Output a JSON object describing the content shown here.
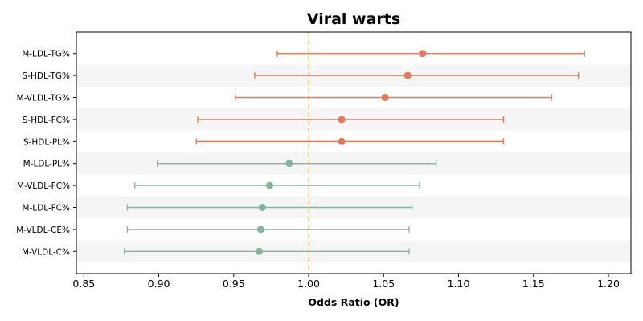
{
  "chart_data": {
    "type": "forest",
    "title": "Viral warts",
    "xlabel": "Odds Ratio (OR)",
    "xlim": [
      0.845,
      1.215
    ],
    "xticks": [
      0.85,
      0.9,
      0.95,
      1.0,
      1.05,
      1.1,
      1.15,
      1.2
    ],
    "xtick_labels": [
      "0.85",
      "0.90",
      "0.95",
      "1.00",
      "1.05",
      "1.10",
      "1.15",
      "1.20"
    ],
    "reference_line": 1.0,
    "reference_color": "#f2c47f",
    "colors": {
      "risk": "#de7b5f",
      "protective": "#84b49a",
      "band": "#f5f5f5"
    },
    "rows": [
      {
        "label": "M-LDL-TG%",
        "or": 1.076,
        "lo": 0.979,
        "hi": 1.184,
        "group": "risk"
      },
      {
        "label": "S-HDL-TG%",
        "or": 1.066,
        "lo": 0.964,
        "hi": 1.18,
        "group": "risk"
      },
      {
        "label": "M-VLDL-TG%",
        "or": 1.051,
        "lo": 0.951,
        "hi": 1.162,
        "group": "risk"
      },
      {
        "label": "S-HDL-FC%",
        "or": 1.022,
        "lo": 0.926,
        "hi": 1.13,
        "group": "risk"
      },
      {
        "label": "S-HDL-PL%",
        "or": 1.022,
        "lo": 0.925,
        "hi": 1.13,
        "group": "risk"
      },
      {
        "label": "M-LDL-PL%",
        "or": 0.987,
        "lo": 0.899,
        "hi": 1.085,
        "group": "protective"
      },
      {
        "label": "M-VLDL-FC%",
        "or": 0.974,
        "lo": 0.884,
        "hi": 1.074,
        "group": "protective"
      },
      {
        "label": "M-LDL-FC%",
        "or": 0.969,
        "lo": 0.879,
        "hi": 1.069,
        "group": "protective"
      },
      {
        "label": "M-VLDL-CE%",
        "or": 0.968,
        "lo": 0.879,
        "hi": 1.067,
        "group": "protective"
      },
      {
        "label": "M-VLDL-C%",
        "or": 0.967,
        "lo": 0.877,
        "hi": 1.067,
        "group": "protective"
      }
    ]
  }
}
